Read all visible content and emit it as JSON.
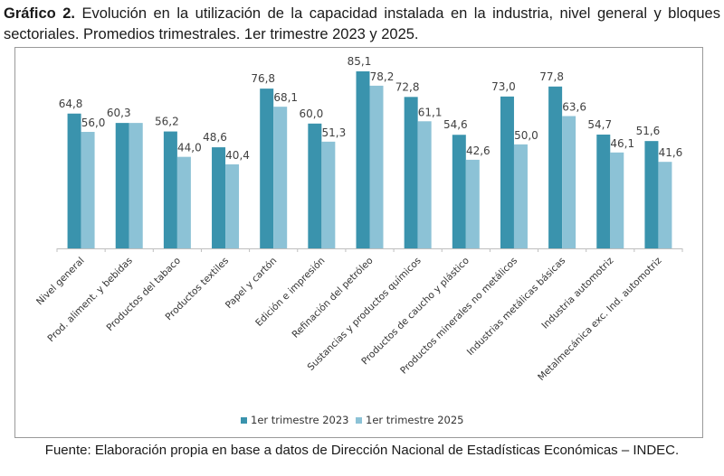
{
  "title": {
    "bold": "Gráfico 2.",
    "text": " Evolución en la utilización de la capacidad instalada en la industria, nivel general y bloques sectoriales. Promedios trimestrales. 1er trimestre 2023 y 2025."
  },
  "source": "Fuente: Elaboración propia en base a datos de Dirección Nacional de Estadísticas Económicas – INDEC.",
  "chart_data": {
    "type": "bar",
    "title": "Evolución en la utilización de la capacidad instalada en la industria, nivel general y bloques sectoriales. Promedios trimestrales. 1er trimestre 2023 y 2025.",
    "xlabel": "",
    "ylabel": "",
    "ylim": [
      0,
      90
    ],
    "grid": false,
    "legend_position": "bottom",
    "categories": [
      "Nivel general",
      "Prod. aliment. y bebidas",
      "Productos del tabaco",
      "Productos textiles",
      "Papel y cartón",
      "Edición e impresión",
      "Refinación del petróleo",
      "Sustancias y productos químicos",
      "Productos de caucho y plástico",
      "Productos minerales no metálicos",
      "Industrias metálicas básicas",
      "Industria automotriz",
      "Metalmecánica exc. Ind. automotriz"
    ],
    "series": [
      {
        "name": "1er trimestre 2023",
        "color": "#3a93ad",
        "values": [
          64.8,
          60.3,
          56.2,
          48.6,
          76.8,
          60.0,
          85.1,
          72.8,
          54.6,
          73.0,
          77.8,
          54.7,
          51.6
        ],
        "labels": [
          "64,8",
          "60,3",
          "56,2",
          "48,6",
          "76,8",
          "60,0",
          "85,1",
          "72,8",
          "54,6",
          "73,0",
          "77,8",
          "54,7",
          "51,6"
        ]
      },
      {
        "name": "1er trimestre 2025",
        "color": "#8cc2d6",
        "values": [
          56.0,
          60.3,
          44.0,
          40.4,
          68.1,
          51.3,
          78.2,
          61.1,
          42.6,
          50.0,
          63.6,
          46.1,
          41.6
        ],
        "labels": [
          "56,0",
          "",
          "44,0",
          "40,4",
          "68,1",
          "51,3",
          "78,2",
          "61,1",
          "42,6",
          "50,0",
          "63,6",
          "46,1",
          "41,6"
        ]
      }
    ]
  }
}
